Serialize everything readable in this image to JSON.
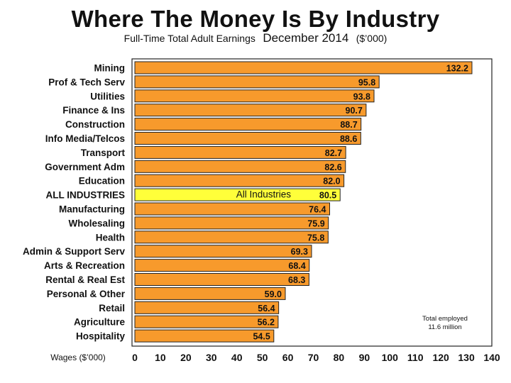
{
  "title": "Where The Money Is By Industry",
  "subtitle": {
    "part1": "Full-Time Total Adult Earnings",
    "part2": "December 2014",
    "part3": "($’000)"
  },
  "chart_data": {
    "type": "bar",
    "orientation": "horizontal",
    "categories": [
      "Mining",
      "Prof & Tech Serv",
      "Utilities",
      "Finance & Ins",
      "Construction",
      "Info Media/Telcos",
      "Transport",
      "Government Adm",
      "Education",
      "ALL INDUSTRIES",
      "Manufacturing",
      "Wholesaling",
      "Health",
      "Admin & Support Serv",
      "Arts & Recreation",
      "Rental & Real Est",
      "Personal & Other",
      "Retail",
      "Agriculture",
      "Hospitality"
    ],
    "values": [
      132.2,
      95.8,
      93.8,
      90.7,
      88.7,
      88.6,
      82.7,
      82.6,
      82.0,
      80.5,
      76.4,
      75.9,
      75.8,
      69.3,
      68.4,
      68.3,
      59.0,
      56.4,
      56.2,
      54.5
    ],
    "value_labels": [
      "132.2",
      "95.8",
      "93.8",
      "90.7",
      "88.7",
      "88.6",
      "82.7",
      "82.6",
      "82.0",
      "80.5",
      "76.4",
      "75.9",
      "75.8",
      "69.3",
      "68.4",
      "68.3",
      "59.0",
      "56.4",
      "56.2",
      "54.5"
    ],
    "highlight_index": 9,
    "highlight_label": "All Industries",
    "xlabel": "Wages ($’000)",
    "xlim": [
      0,
      140
    ],
    "xticks": [
      0,
      10,
      20,
      30,
      40,
      50,
      60,
      70,
      80,
      90,
      100,
      110,
      120,
      130,
      140
    ],
    "annotation": "Total employed\n11.6 million",
    "grid": false,
    "colors": {
      "bar": "#f79a2c",
      "highlight": "#ffff3a",
      "bar_stroke": "#222222",
      "panel_border": "#222222"
    }
  }
}
